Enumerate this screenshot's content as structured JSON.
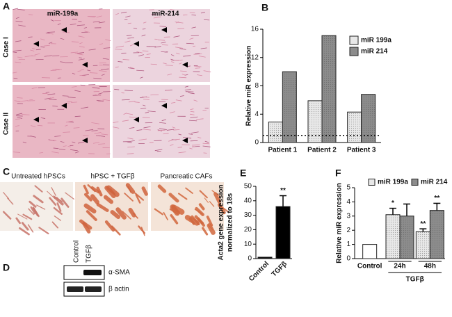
{
  "panels": {
    "A": {
      "label": "A",
      "columns": [
        "miR-199a",
        "miR-214"
      ],
      "rows": [
        "Case I",
        "Case II"
      ]
    },
    "C": {
      "label": "C",
      "images": [
        "Untreated hPSCs",
        "hPSC + TGFβ",
        "Pancreatic CAFs"
      ]
    },
    "D": {
      "label": "D",
      "lanes": [
        "Control",
        "TGFβ"
      ],
      "bands": [
        "α-SMA",
        "β actin"
      ]
    }
  },
  "chart_data": [
    {
      "type": "bar",
      "panel_label": "B",
      "ylabel": [
        "Relative miR expression"
      ],
      "categories": [
        "Patient 1",
        "Patient 2",
        "Patient 3"
      ],
      "series": [
        {
          "name": "miR 199a",
          "color": "#e8e8e8",
          "values": [
            2.9,
            5.9,
            4.3
          ]
        },
        {
          "name": "miR 214",
          "color": "#8c8c8c",
          "values": [
            10,
            15.1,
            6.8
          ]
        }
      ],
      "ylim": [
        0,
        16
      ],
      "yticks": [
        0,
        4,
        8,
        12,
        16
      ],
      "reference_line": 1,
      "legend": "upper right"
    },
    {
      "type": "bar",
      "panel_label": "E",
      "ylabel": [
        "Acta2 gene expression",
        "normalized to 18s"
      ],
      "categories": [
        "Control",
        "TGFβ"
      ],
      "values": [
        1,
        36
      ],
      "errors": [
        null,
        7.5
      ],
      "significance": [
        null,
        "**"
      ],
      "color": "#000000",
      "ylim": [
        0,
        50
      ],
      "yticks": [
        0,
        10,
        20,
        30,
        40,
        50
      ]
    },
    {
      "type": "bar",
      "panel_label": "F",
      "ylabel": [
        "Relative miR  expression"
      ],
      "categories": [
        "Control",
        "24h",
        "48h"
      ],
      "group_label": "TGFβ",
      "series": [
        {
          "name": "miR 199a",
          "color": "#e8e8e8",
          "values": [
            1,
            3.1,
            1.9
          ],
          "errors": [
            null,
            0.45,
            0.2
          ],
          "significance": [
            null,
            "*",
            "**"
          ]
        },
        {
          "name": "miR 214",
          "color": "#8c8c8c",
          "values": [
            null,
            3.0,
            3.4
          ],
          "errors": [
            null,
            0.85,
            0.5
          ],
          "significance": [
            null,
            null,
            "**"
          ]
        }
      ],
      "control_color": "#ffffff",
      "ylim": [
        0,
        5
      ],
      "yticks": [
        0,
        1,
        2,
        3,
        4,
        5
      ],
      "legend": "top"
    }
  ]
}
